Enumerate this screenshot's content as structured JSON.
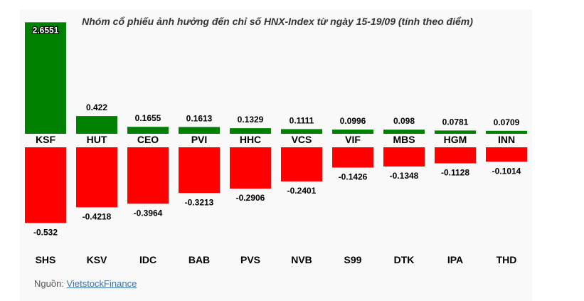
{
  "title": "Nhóm cổ phiếu ảnh hưởng đến chỉ số HNX-Index từ ngày 15-19/09 (tính theo điểm)",
  "source": {
    "label": "Nguồn: ",
    "link_text": "VietstockFinance"
  },
  "colors": {
    "positive": "#008000",
    "negative": "#ff0000",
    "panel": "#f9f9f9"
  },
  "chart_data": {
    "type": "bar",
    "title": "Nhóm cổ phiếu ảnh hưởng đến chỉ số HNX-Index từ ngày 15-19/09 (tính theo điểm)",
    "series": [
      {
        "categories": [
          "KSF",
          "HUT",
          "CEO",
          "PVI",
          "HHC",
          "VCS",
          "VIF",
          "MBS",
          "HGM",
          "INN"
        ],
        "values": [
          2.6551,
          0.422,
          0.1655,
          0.1613,
          0.1329,
          0.1111,
          0.0996,
          0.098,
          0.0781,
          0.0709
        ],
        "labels": [
          "2.6551",
          "0.422",
          "0.1655",
          "0.1613",
          "0.1329",
          "0.1111",
          "0.0996",
          "0.098",
          "0.0781",
          "0.0709"
        ]
      },
      {
        "categories": [
          "SHS",
          "KSV",
          "IDC",
          "BAB",
          "PVS",
          "NVB",
          "S99",
          "DTK",
          "IPA",
          "THD"
        ],
        "values": [
          -0.532,
          -0.4218,
          -0.3964,
          -0.3213,
          -0.2906,
          -0.2401,
          -0.1426,
          -0.1348,
          -0.1128,
          -0.1014
        ],
        "labels": [
          "-0.532",
          "-0.4218",
          "-0.3964",
          "-0.3213",
          "-0.2906",
          "-0.2401",
          "-0.1426",
          "-0.1348",
          "-0.1128",
          "-0.1014"
        ]
      }
    ],
    "grid": false,
    "legend": "none"
  }
}
